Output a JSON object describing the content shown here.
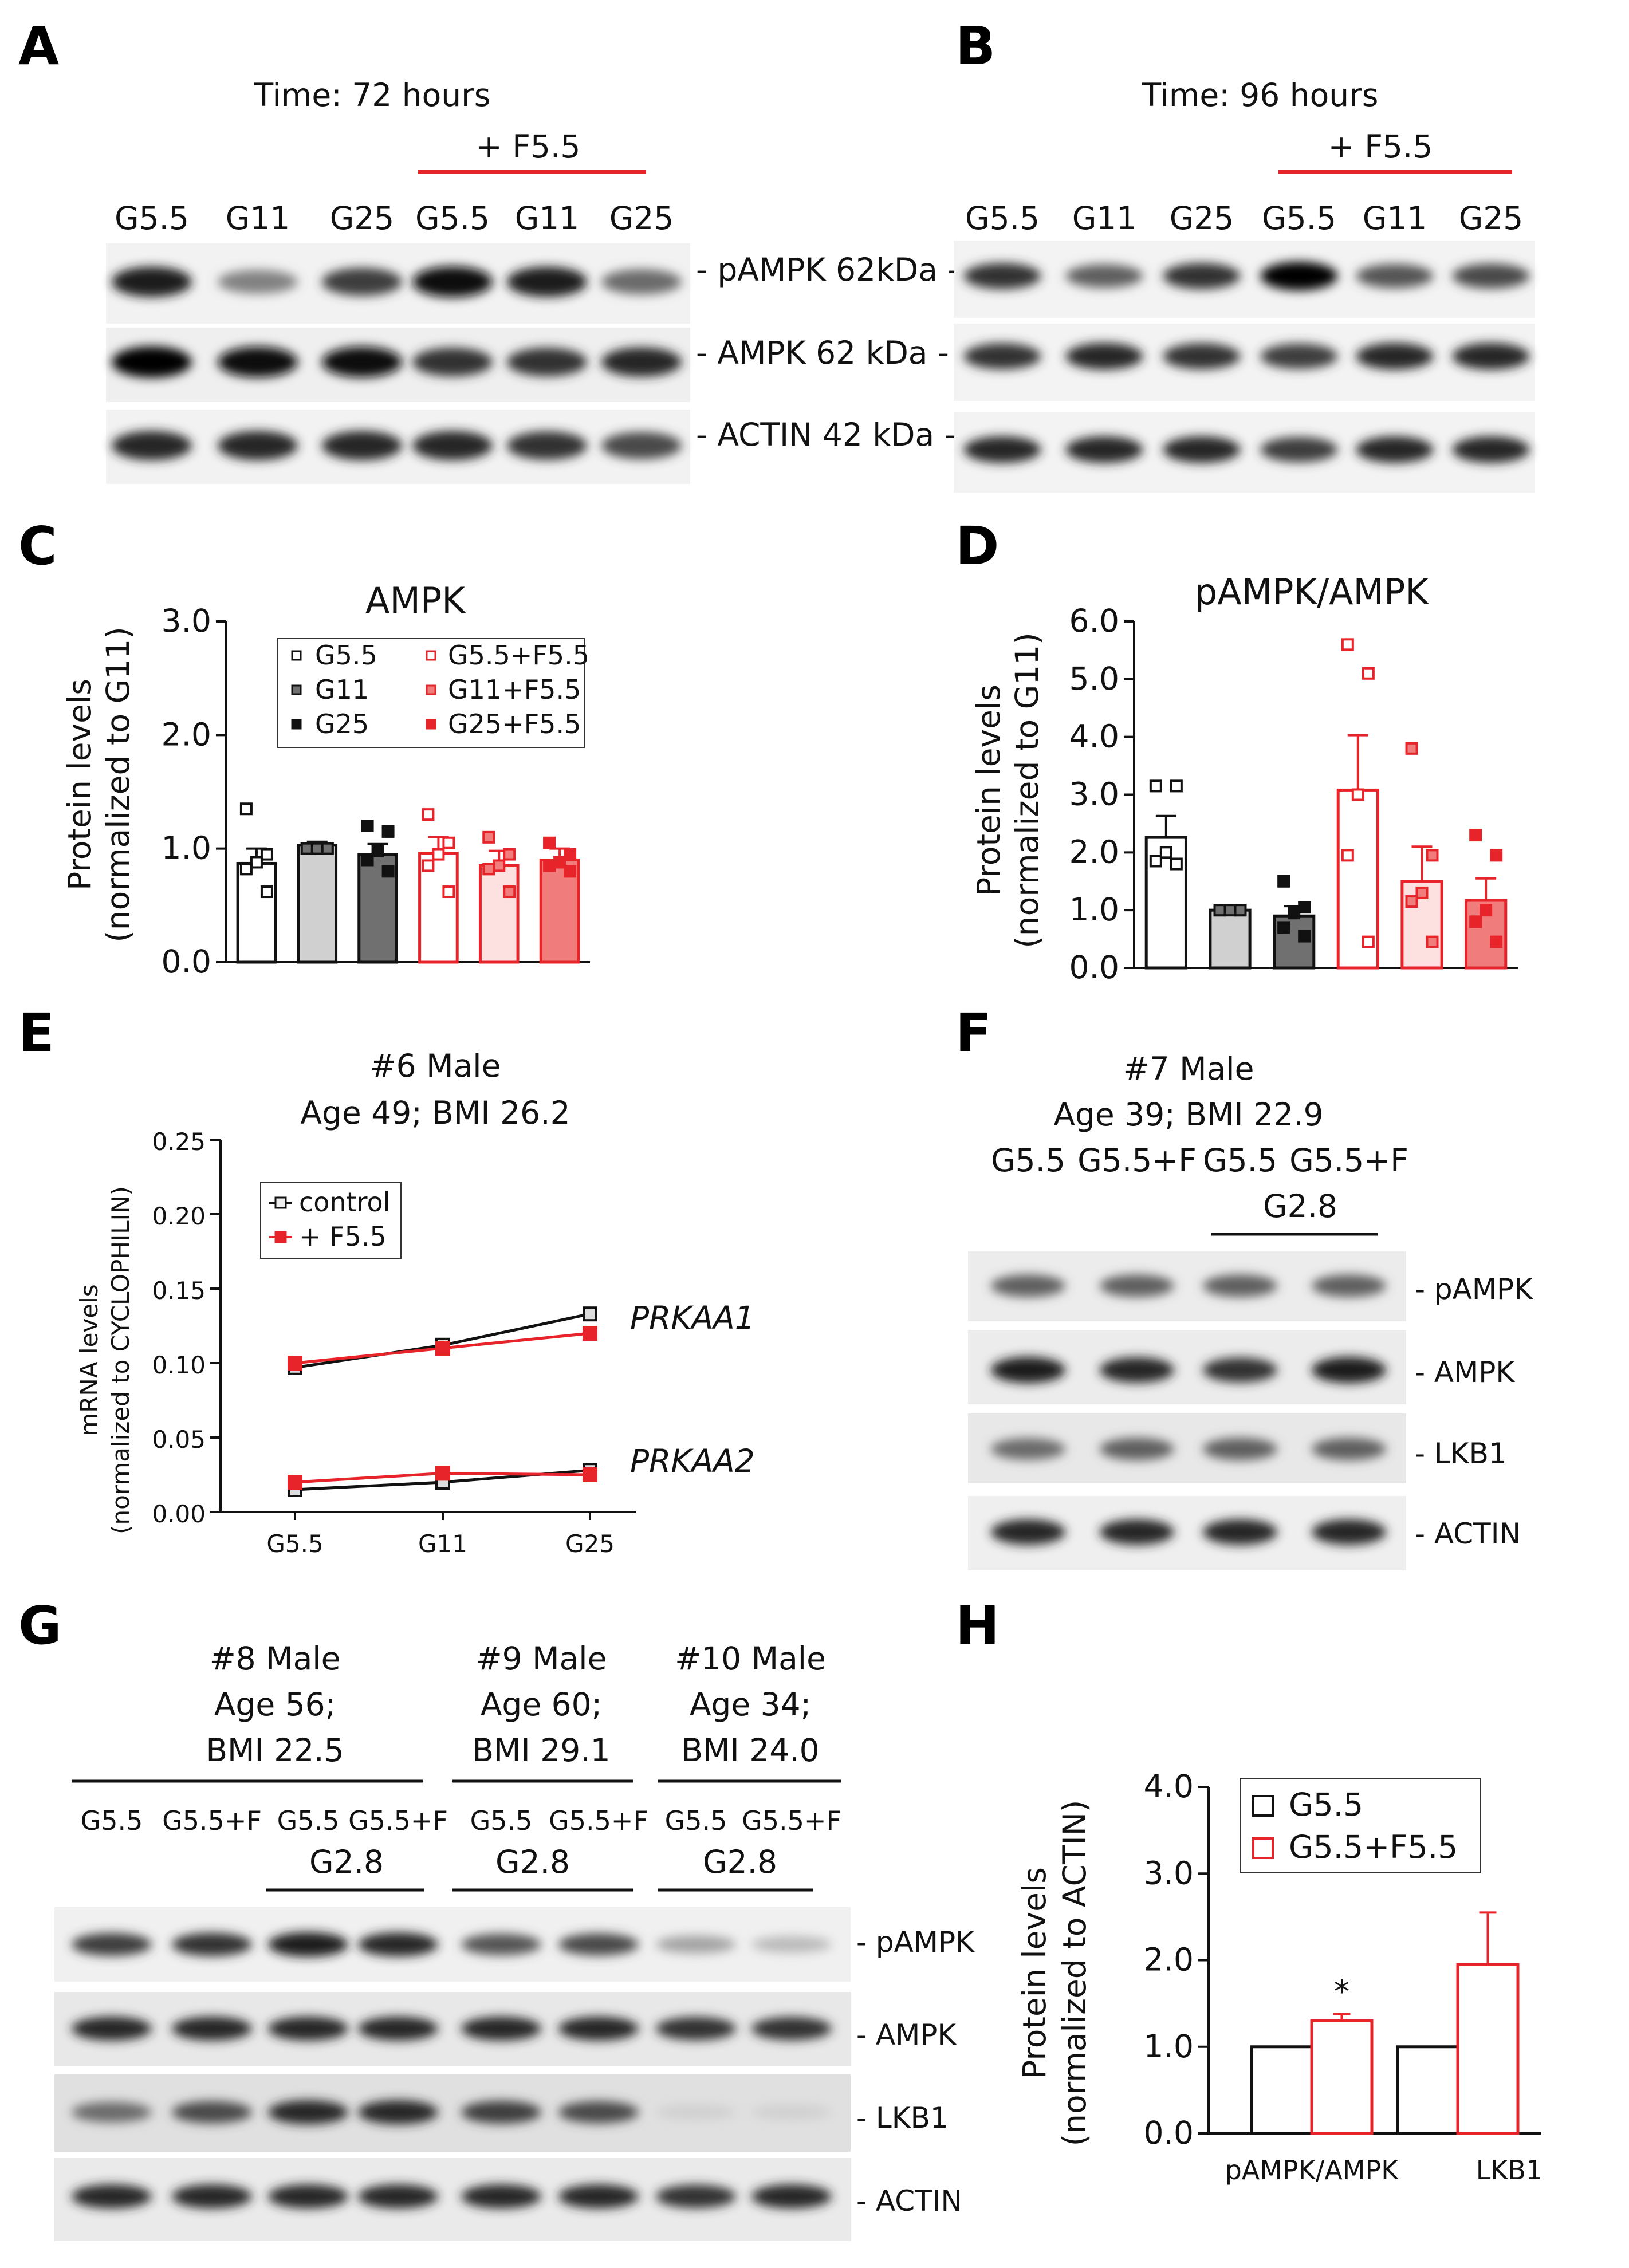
{
  "colors": {
    "red": "#e8242b",
    "light_gray": "#d0d0d0",
    "dark_gray": "#707070",
    "pink_light": "#fde0e0",
    "pink_mid": "#f7b8b8",
    "pink_dark": "#f07c7c"
  },
  "panels": {
    "A": "A",
    "B": "B",
    "C": "C",
    "D": "D",
    "E": "E",
    "F": "F",
    "G": "G",
    "H": "H"
  },
  "blotA": {
    "time": "Time: 72 hours",
    "f55": "+ F5.5",
    "lanes": [
      "G5.5",
      "G11",
      "G25",
      "G5.5",
      "G11",
      "G25"
    ],
    "bands": [
      "- pAMPK 62kDa -",
      "- AMPK 62 kDa -",
      "- ACTIN 42 kDa -"
    ],
    "intensity": [
      [
        0.9,
        0.45,
        0.75,
        0.95,
        0.9,
        0.55
      ],
      [
        1,
        0.95,
        0.95,
        0.8,
        0.8,
        0.85
      ],
      [
        0.85,
        0.85,
        0.85,
        0.85,
        0.8,
        0.7
      ]
    ]
  },
  "blotB": {
    "time": "Time: 96 hours",
    "f55": "+ F5.5",
    "lanes": [
      "G5.5",
      "G11",
      "G25",
      "G5.5",
      "G11",
      "G25"
    ],
    "intensity": [
      [
        0.8,
        0.6,
        0.8,
        1,
        0.65,
        0.7
      ],
      [
        0.8,
        0.85,
        0.8,
        0.75,
        0.85,
        0.85
      ],
      [
        0.85,
        0.85,
        0.85,
        0.75,
        0.85,
        0.85
      ]
    ]
  },
  "blotF": {
    "donor": "#7 Male",
    "info": "Age 39; BMI 22.9",
    "lanes": [
      "G5.5",
      "G5.5+F",
      "G5.5",
      "G5.5+F"
    ],
    "g28": "G2.8",
    "bands": [
      "- pAMPK",
      "- AMPK",
      "- LKB1",
      "- ACTIN"
    ],
    "intensity": [
      [
        0.6,
        0.6,
        0.6,
        0.6
      ],
      [
        0.9,
        0.85,
        0.8,
        0.9
      ],
      [
        0.55,
        0.6,
        0.6,
        0.6
      ],
      [
        0.85,
        0.85,
        0.85,
        0.85
      ]
    ]
  },
  "blotG": {
    "donors": [
      {
        "title": "#8 Male",
        "l1": "Age 56;",
        "l2": "BMI 22.5"
      },
      {
        "title": "#9 Male",
        "l1": "Age 60;",
        "l2": "BMI 29.1"
      },
      {
        "title": "#10 Male",
        "l1": "Age 34;",
        "l2": "BMI 24.0"
      }
    ],
    "lanes": [
      "G5.5",
      "G5.5+F",
      "G5.5",
      "G5.5+F",
      "G5.5",
      "G5.5+F",
      "G5.5",
      "G5.5+F"
    ],
    "g28": "G2.8",
    "bands": [
      "- pAMPK",
      "- AMPK",
      "- LKB1",
      "- ACTIN"
    ],
    "intensity": [
      [
        0.75,
        0.8,
        0.9,
        0.85,
        0.65,
        0.7,
        0.3,
        0.2
      ],
      [
        0.85,
        0.85,
        0.85,
        0.85,
        0.85,
        0.85,
        0.8,
        0.8
      ],
      [
        0.55,
        0.7,
        0.85,
        0.85,
        0.75,
        0.7,
        0.1,
        0.1
      ],
      [
        0.85,
        0.85,
        0.85,
        0.85,
        0.85,
        0.85,
        0.8,
        0.85
      ]
    ]
  },
  "chart_data": [
    {
      "panel": "C",
      "type": "bar",
      "title": "AMPK",
      "ylabel": [
        "Protein levels",
        "(normalized to G11)"
      ],
      "ylim": [
        0,
        3
      ],
      "yticks": [
        "0.0",
        "1.0",
        "2.0",
        "3.0"
      ],
      "legend": [
        "G5.5",
        "G11",
        "G25",
        "G5.5+F5.5",
        "G11+F5.5",
        "G25+F5.5"
      ],
      "values": [
        0.87,
        1.03,
        0.95,
        0.96,
        0.85,
        0.9
      ],
      "errors": [
        0.13,
        0.03,
        0.09,
        0.14,
        0.13,
        0.1
      ],
      "points": [
        [
          1.35,
          0.95,
          0.88,
          0.82,
          0.62
        ],
        [
          1.0,
          1.0,
          1.0,
          1.0,
          1.0
        ],
        [
          1.2,
          1.15,
          0.98,
          0.9,
          0.8
        ],
        [
          1.3,
          1.05,
          0.95,
          0.85,
          0.62
        ],
        [
          1.1,
          0.95,
          0.85,
          0.82,
          0.62
        ],
        [
          1.05,
          0.95,
          0.88,
          0.85,
          0.8
        ]
      ]
    },
    {
      "panel": "D",
      "type": "bar",
      "title": "pAMPK/AMPK",
      "ylabel": [
        "Protein levels",
        "(normalized to G11)"
      ],
      "ylim": [
        0,
        6
      ],
      "yticks": [
        "0.0",
        "1.0",
        "2.0",
        "3.0",
        "4.0",
        "5.0",
        "6.0"
      ],
      "values": [
        2.26,
        1.0,
        0.9,
        3.08,
        1.5,
        1.17
      ],
      "errors": [
        0.37,
        0.05,
        0.17,
        0.95,
        0.6,
        0.38
      ],
      "points": [
        [
          3.15,
          3.15,
          2.0,
          1.85,
          1.8
        ],
        [
          1.0,
          1.0,
          1.0,
          1.0,
          1.0
        ],
        [
          1.5,
          1.05,
          0.95,
          0.7,
          0.55
        ],
        [
          5.6,
          5.1,
          3.0,
          1.95,
          0.45
        ],
        [
          3.8,
          1.95,
          1.3,
          1.15,
          0.45
        ],
        [
          2.3,
          1.95,
          1.0,
          0.8,
          0.45
        ]
      ]
    },
    {
      "panel": "E",
      "type": "line",
      "title": "#6 Male",
      "subtitle": "Age 49; BMI 26.2",
      "ylabel": [
        "mRNA levels",
        "(normalized to CYCLOPHILIN)"
      ],
      "categories": [
        "G5.5",
        "G11",
        "G25"
      ],
      "ylim": [
        0,
        0.25
      ],
      "yticks": [
        "0.00",
        "0.05",
        "0.10",
        "0.15",
        "0.20",
        "0.25"
      ],
      "legend": [
        "control",
        "+ F5.5"
      ],
      "gene_labels": [
        "PRKAA1",
        "PRKAA2"
      ],
      "series": [
        {
          "name": "control",
          "gene": "PRKAA1",
          "values": [
            0.097,
            0.112,
            0.133
          ]
        },
        {
          "name": "+ F5.5",
          "gene": "PRKAA1",
          "values": [
            0.1,
            0.11,
            0.12
          ]
        },
        {
          "name": "control",
          "gene": "PRKAA2",
          "values": [
            0.015,
            0.02,
            0.028
          ]
        },
        {
          "name": "+ F5.5",
          "gene": "PRKAA2",
          "values": [
            0.02,
            0.026,
            0.025
          ]
        }
      ]
    },
    {
      "panel": "H",
      "type": "bar",
      "ylabel": [
        "Protein levels",
        "(normalized to ACTIN)"
      ],
      "ylim": [
        0,
        4
      ],
      "yticks": [
        "0.0",
        "1.0",
        "2.0",
        "3.0",
        "4.0"
      ],
      "categories": [
        "pAMPK/AMPK",
        "LKB1"
      ],
      "legend": [
        "G5.5",
        "G5.5+F5.5"
      ],
      "series": [
        {
          "name": "G5.5",
          "values": [
            1.0,
            1.0
          ],
          "errors": [
            0,
            0
          ]
        },
        {
          "name": "G5.5+F5.5",
          "values": [
            1.3,
            1.95
          ],
          "errors": [
            0.08,
            0.6
          ]
        }
      ],
      "annotation": "*"
    }
  ]
}
